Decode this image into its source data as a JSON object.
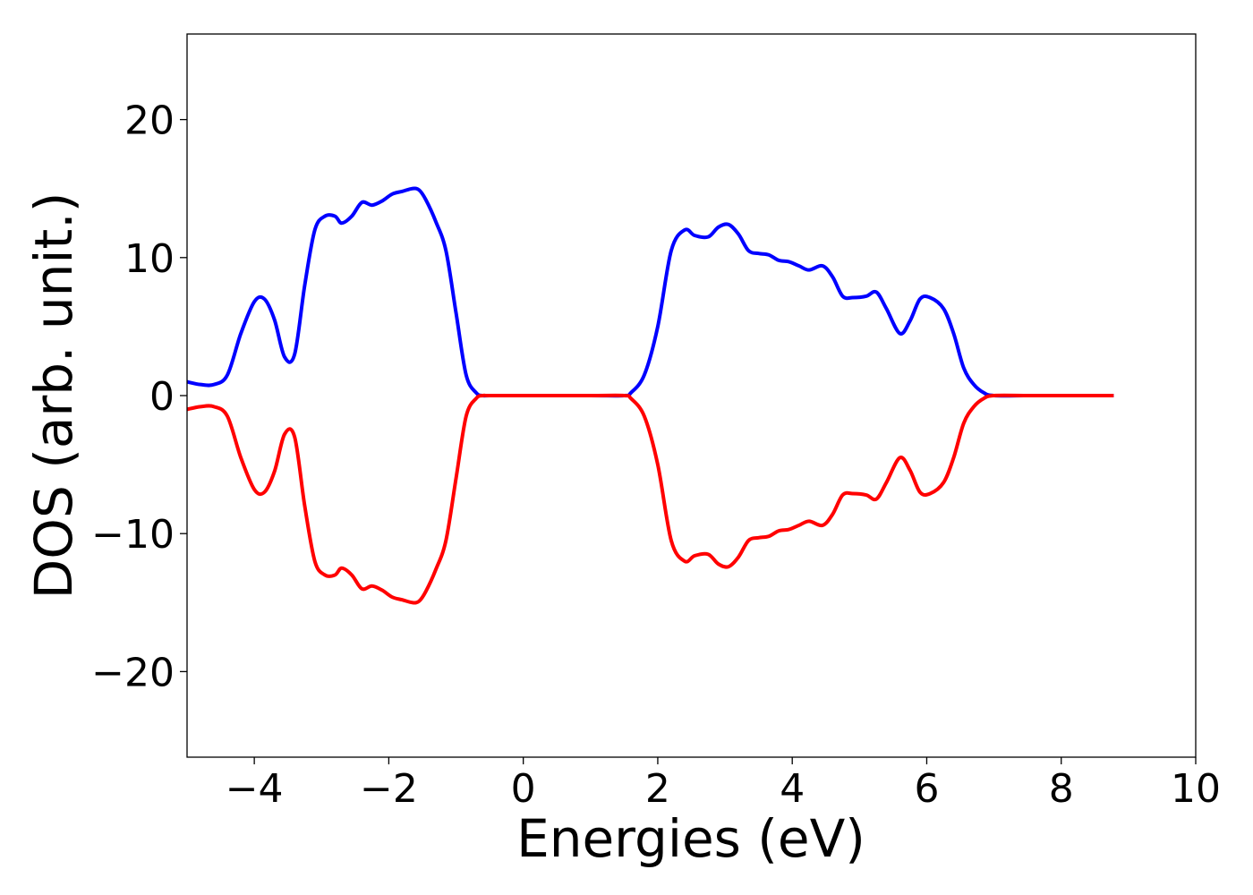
{
  "chart_data": {
    "type": "line",
    "title": "",
    "xlabel": "Energies (eV)",
    "ylabel": "DOS (arb. unit.)",
    "xlim": [
      -5,
      10
    ],
    "ylim": [
      -26.2,
      26.2
    ],
    "xticks": [
      -4,
      -2,
      0,
      2,
      4,
      6,
      8,
      10
    ],
    "xtick_labels": [
      "−4",
      "−2",
      "0",
      "2",
      "4",
      "6",
      "8",
      "10"
    ],
    "yticks": [
      -20,
      -10,
      0,
      10,
      20
    ],
    "ytick_labels": [
      "−20",
      "−10",
      "0",
      "10",
      "20"
    ],
    "grid": false,
    "legend": "none",
    "colors": {
      "spin_up": "#0000ff",
      "spin_down": "#ff0000"
    },
    "series": [
      {
        "color": "#0000ff",
        "x": [
          -5.0,
          -4.8,
          -4.6,
          -4.4,
          -4.2,
          -4.0,
          -3.85,
          -3.7,
          -3.55,
          -3.4,
          -3.25,
          -3.1,
          -2.95,
          -2.8,
          -2.7,
          -2.55,
          -2.4,
          -2.25,
          -2.1,
          -1.95,
          -1.8,
          -1.65,
          -1.55,
          -1.45,
          -1.3,
          -1.15,
          -1.0,
          -0.85,
          -0.7,
          -0.6,
          -0.5,
          0.0,
          1.0,
          1.5,
          1.6,
          1.8,
          2.0,
          2.2,
          2.4,
          2.55,
          2.75,
          2.9,
          3.05,
          3.2,
          3.35,
          3.5,
          3.65,
          3.8,
          3.95,
          4.1,
          4.25,
          4.45,
          4.6,
          4.75,
          4.9,
          5.1,
          5.25,
          5.4,
          5.6,
          5.75,
          5.9,
          6.05,
          6.25,
          6.4,
          6.55,
          6.7,
          6.85,
          7.0,
          7.5,
          8.0,
          8.78
        ],
        "values": [
          1.0,
          0.8,
          0.8,
          1.5,
          4.5,
          6.8,
          7.0,
          5.5,
          2.8,
          3.0,
          8.0,
          12.0,
          13.0,
          13.0,
          12.5,
          13.0,
          14.0,
          13.8,
          14.1,
          14.6,
          14.8,
          15.0,
          14.9,
          14.2,
          12.6,
          10.5,
          6.0,
          1.5,
          0.2,
          0.0,
          0.0,
          0.0,
          0.0,
          0.0,
          0.2,
          1.5,
          5.0,
          10.5,
          12.0,
          11.6,
          11.5,
          12.2,
          12.4,
          11.7,
          10.5,
          10.3,
          10.2,
          9.8,
          9.7,
          9.4,
          9.1,
          9.4,
          8.6,
          7.2,
          7.1,
          7.2,
          7.5,
          6.3,
          4.5,
          5.4,
          7.0,
          7.1,
          6.3,
          4.5,
          2.0,
          0.8,
          0.2,
          0.0,
          0.0,
          0.0,
          0.0
        ]
      },
      {
        "color": "#ff0000",
        "x": [
          -5.0,
          -4.8,
          -4.6,
          -4.4,
          -4.2,
          -4.0,
          -3.85,
          -3.7,
          -3.55,
          -3.4,
          -3.25,
          -3.1,
          -2.95,
          -2.8,
          -2.7,
          -2.55,
          -2.4,
          -2.25,
          -2.1,
          -1.95,
          -1.8,
          -1.65,
          -1.55,
          -1.45,
          -1.3,
          -1.15,
          -1.0,
          -0.85,
          -0.7,
          -0.6,
          -0.5,
          0.0,
          1.0,
          1.5,
          1.6,
          1.8,
          2.0,
          2.2,
          2.4,
          2.55,
          2.75,
          2.9,
          3.05,
          3.2,
          3.35,
          3.5,
          3.65,
          3.8,
          3.95,
          4.1,
          4.25,
          4.45,
          4.6,
          4.75,
          4.9,
          5.1,
          5.25,
          5.4,
          5.6,
          5.75,
          5.9,
          6.05,
          6.25,
          6.4,
          6.55,
          6.7,
          6.85,
          7.0,
          7.5,
          8.0,
          8.78
        ],
        "values": [
          -1.0,
          -0.8,
          -0.8,
          -1.5,
          -4.5,
          -6.8,
          -7.0,
          -5.5,
          -2.8,
          -3.0,
          -8.0,
          -12.0,
          -13.0,
          -13.0,
          -12.5,
          -13.0,
          -14.0,
          -13.8,
          -14.1,
          -14.6,
          -14.8,
          -15.0,
          -14.9,
          -14.2,
          -12.6,
          -10.5,
          -6.0,
          -1.5,
          -0.2,
          0.0,
          0.0,
          0.0,
          0.0,
          0.0,
          -0.2,
          -1.5,
          -5.0,
          -10.5,
          -12.0,
          -11.6,
          -11.5,
          -12.2,
          -12.4,
          -11.7,
          -10.5,
          -10.3,
          -10.2,
          -9.8,
          -9.7,
          -9.4,
          -9.1,
          -9.4,
          -8.6,
          -7.2,
          -7.1,
          -7.2,
          -7.5,
          -6.3,
          -4.5,
          -5.4,
          -7.0,
          -7.1,
          -6.3,
          -4.5,
          -2.0,
          -0.8,
          -0.2,
          0.0,
          0.0,
          0.0,
          0.0
        ]
      }
    ]
  }
}
